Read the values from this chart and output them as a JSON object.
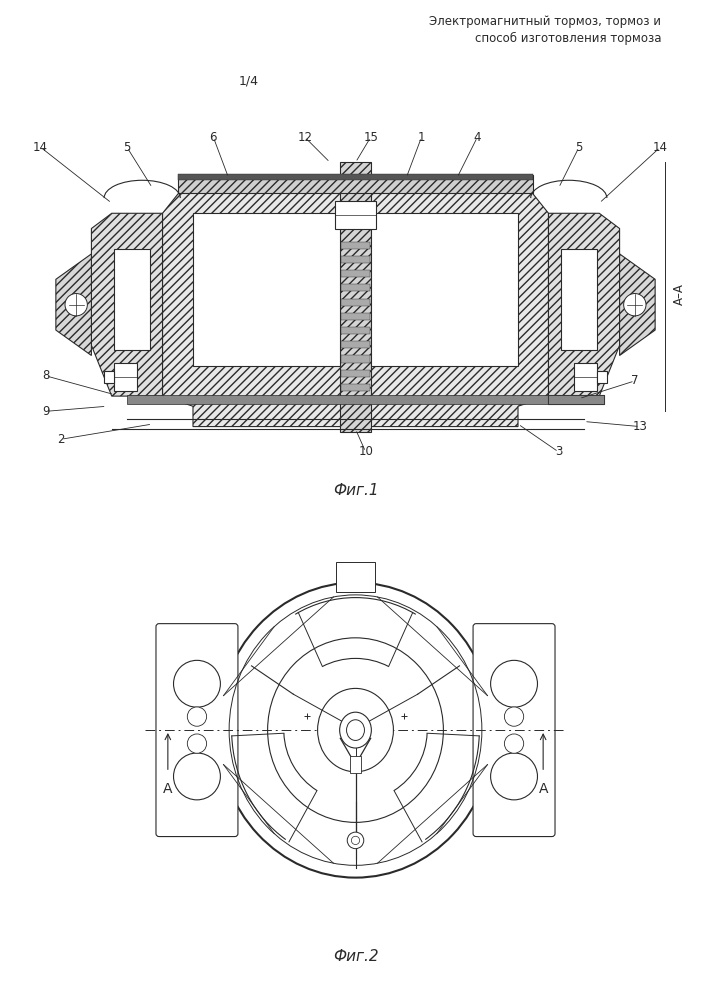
{
  "title": "Электромагнитный тормоз, тормоз и\nспособ изготовления тормоза",
  "page_label": "1/4",
  "fig1_label": "Фиг.1",
  "fig2_label": "Фиг.2",
  "line_color": "#2a2a2a",
  "bg_color": "#ffffff",
  "font_size_title": 8.5,
  "font_size_label": 10,
  "font_size_num": 8.5
}
